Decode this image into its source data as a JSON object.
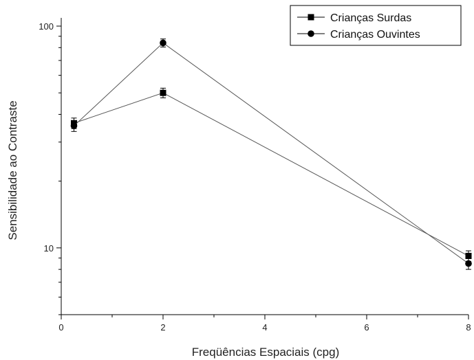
{
  "chart_data": {
    "type": "line",
    "xlabel": "Freqüências Espaciais (cpg)",
    "ylabel": "Sensibilidade ao Contraste",
    "xlim": [
      0,
      8
    ],
    "ylim": [
      5,
      100
    ],
    "y_scale": "log",
    "x_ticks": [
      0,
      2,
      4,
      6,
      8
    ],
    "y_ticks": [
      10,
      100
    ],
    "grid": false,
    "legend_position": "top-right",
    "series": [
      {
        "name": "Crianças Surdas",
        "marker": "square",
        "color": "#000000",
        "x": [
          0.25,
          2,
          8
        ],
        "values": [
          36.5,
          50,
          9.2
        ],
        "error": [
          2,
          2.5,
          0.5
        ]
      },
      {
        "name": "Crianças Ouvintes",
        "marker": "circle",
        "color": "#000000",
        "x": [
          0.25,
          2,
          8
        ],
        "values": [
          35.5,
          84,
          8.5
        ],
        "error": [
          2,
          3.5,
          0.5
        ]
      }
    ]
  }
}
